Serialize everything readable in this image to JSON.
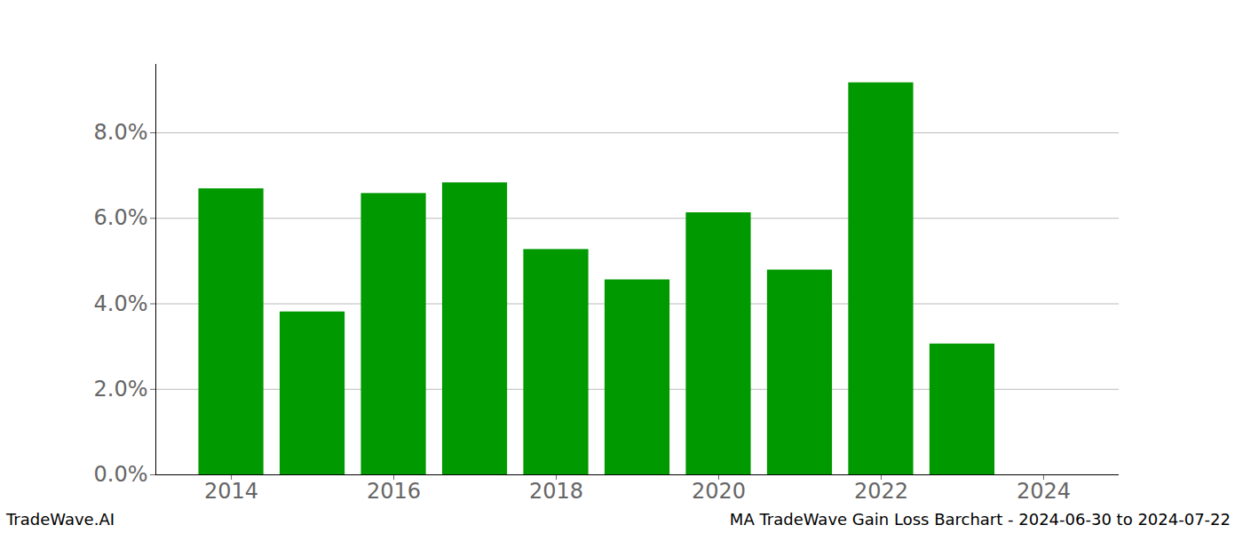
{
  "chart_data": {
    "type": "bar",
    "annotations": [
      "TradeWave.AI",
      "MA TradeWave Gain Loss Barchart - 2024-06-30 to 2024-07-22"
    ],
    "x": [
      2014,
      2015,
      2016,
      2017,
      2018,
      2019,
      2020,
      2021,
      2022,
      2023
    ],
    "values": [
      6.69,
      3.81,
      6.58,
      6.83,
      5.27,
      4.56,
      6.13,
      4.79,
      9.17,
      3.06
    ],
    "color": "#009900",
    "xlim": [
      2013.07,
      2024.93
    ],
    "xticks": [
      2014,
      2016,
      2018,
      2020,
      2022,
      2024
    ],
    "ylim": [
      0,
      9.6
    ],
    "yticks": [
      {
        "value": 0,
        "label": "0.0%"
      },
      {
        "value": 2,
        "label": "2.0%"
      },
      {
        "value": 4,
        "label": "4.0%"
      },
      {
        "value": 6,
        "label": "6.0%"
      },
      {
        "value": 8,
        "label": "8.0%"
      }
    ],
    "grid": true
  }
}
